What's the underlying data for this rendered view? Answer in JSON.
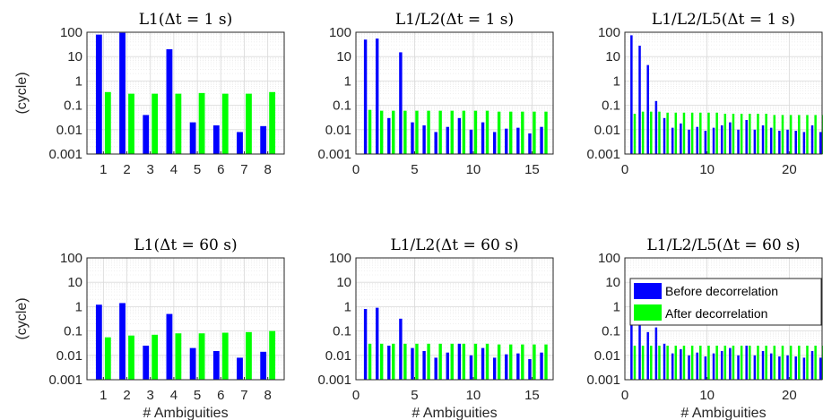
{
  "colors": {
    "before": "#0000ff",
    "after": "#00ff00",
    "grid": "#d9d9d9",
    "axis": "#262626"
  },
  "legend": {
    "placement": "top-right",
    "items": [
      "Before decorrelation",
      "After decorrelation"
    ]
  },
  "chart_data": [
    {
      "type": "bar",
      "title": "L1(Δt = 1 s)",
      "ylabel": "(cycle)",
      "xlabel": "",
      "yscale": "log",
      "ylim": [
        0.001,
        100
      ],
      "xlim": [
        0.3,
        8.7
      ],
      "xticks": [
        "1",
        "2",
        "3",
        "4",
        "5",
        "6",
        "7",
        "8"
      ],
      "yticks": [
        "0.001",
        "0.01",
        "0.1",
        "1",
        "10",
        "100"
      ],
      "grid": true,
      "x": [
        1,
        2,
        3,
        4,
        5,
        6,
        7,
        8
      ],
      "series": [
        {
          "name": "Before decorrelation",
          "values": [
            80,
            95,
            0.04,
            20,
            0.02,
            0.015,
            0.008,
            0.014
          ]
        },
        {
          "name": "After decorrelation",
          "values": [
            0.35,
            0.3,
            0.3,
            0.3,
            0.32,
            0.3,
            0.3,
            0.35
          ]
        }
      ]
    },
    {
      "type": "bar",
      "title": "L1/L2(Δt = 1 s)",
      "ylabel": "",
      "xlabel": "",
      "yscale": "log",
      "ylim": [
        0.001,
        100
      ],
      "xlim": [
        0,
        16.8
      ],
      "xticks": [
        "0",
        "5",
        "10",
        "15"
      ],
      "yticks": [
        "0.001",
        "0.01",
        "0.1",
        "1",
        "10",
        "100"
      ],
      "grid": true,
      "x": [
        1,
        2,
        3,
        4,
        5,
        6,
        7,
        8,
        9,
        10,
        11,
        12,
        13,
        14,
        15,
        16
      ],
      "series": [
        {
          "name": "Before decorrelation",
          "values": [
            50,
            55,
            0.03,
            15,
            0.02,
            0.015,
            0.008,
            0.013,
            0.03,
            0.01,
            0.02,
            0.008,
            0.011,
            0.012,
            0.007,
            0.013
          ]
        },
        {
          "name": "After decorrelation",
          "values": [
            0.065,
            0.06,
            0.06,
            0.06,
            0.06,
            0.06,
            0.06,
            0.06,
            0.06,
            0.06,
            0.06,
            0.055,
            0.055,
            0.055,
            0.055,
            0.055
          ]
        }
      ]
    },
    {
      "type": "bar",
      "title": "L1/L2/L5(Δt = 1 s)",
      "ylabel": "",
      "xlabel": "",
      "yscale": "log",
      "ylim": [
        0.001,
        100
      ],
      "xlim": [
        0,
        24
      ],
      "xticks": [
        "0",
        "10",
        "20"
      ],
      "yticks": [
        "0.001",
        "0.01",
        "0.1",
        "1",
        "10",
        "100"
      ],
      "grid": true,
      "x": [
        1,
        2,
        3,
        4,
        5,
        6,
        7,
        8,
        9,
        10,
        11,
        12,
        13,
        14,
        15,
        16,
        17,
        18,
        19,
        20,
        21,
        22,
        23,
        24
      ],
      "series": [
        {
          "name": "Before decorrelation",
          "values": [
            75,
            28,
            4.5,
            0.15,
            0.03,
            0.012,
            0.018,
            0.01,
            0.013,
            0.009,
            0.012,
            0.015,
            0.02,
            0.01,
            0.025,
            0.01,
            0.015,
            0.012,
            0.009,
            0.01,
            0.009,
            0.008,
            0.015,
            0.008
          ]
        },
        {
          "name": "After decorrelation",
          "values": [
            0.045,
            0.055,
            0.055,
            0.055,
            0.05,
            0.05,
            0.05,
            0.05,
            0.05,
            0.05,
            0.05,
            0.045,
            0.045,
            0.045,
            0.045,
            0.045,
            0.045,
            0.04,
            0.04,
            0.04,
            0.04,
            0.04,
            0.04,
            0.04
          ]
        }
      ]
    },
    {
      "type": "bar",
      "title": "L1(Δt = 60 s)",
      "ylabel": "(cycle)",
      "xlabel": "# Ambiguities",
      "yscale": "log",
      "ylim": [
        0.001,
        100
      ],
      "xlim": [
        0.3,
        8.7
      ],
      "xticks": [
        "1",
        "2",
        "3",
        "4",
        "5",
        "6",
        "7",
        "8"
      ],
      "yticks": [
        "0.001",
        "0.01",
        "0.1",
        "1",
        "10",
        "100"
      ],
      "grid": true,
      "x": [
        1,
        2,
        3,
        4,
        5,
        6,
        7,
        8
      ],
      "series": [
        {
          "name": "Before decorrelation",
          "values": [
            1.2,
            1.4,
            0.025,
            0.5,
            0.02,
            0.015,
            0.008,
            0.014
          ]
        },
        {
          "name": "After decorrelation",
          "values": [
            0.055,
            0.065,
            0.07,
            0.08,
            0.08,
            0.085,
            0.09,
            0.1
          ]
        }
      ]
    },
    {
      "type": "bar",
      "title": "L1/L2(Δt = 60 s)",
      "ylabel": "",
      "xlabel": "# Ambiguities",
      "yscale": "log",
      "ylim": [
        0.001,
        100
      ],
      "xlim": [
        0,
        16.8
      ],
      "xticks": [
        "0",
        "5",
        "10",
        "15"
      ],
      "yticks": [
        "0.001",
        "0.01",
        "0.1",
        "1",
        "10",
        "100"
      ],
      "grid": true,
      "x": [
        1,
        2,
        3,
        4,
        5,
        6,
        7,
        8,
        9,
        10,
        11,
        12,
        13,
        14,
        15,
        16
      ],
      "series": [
        {
          "name": "Before decorrelation",
          "values": [
            0.8,
            0.9,
            0.025,
            0.32,
            0.02,
            0.015,
            0.008,
            0.013,
            0.03,
            0.01,
            0.02,
            0.008,
            0.011,
            0.012,
            0.007,
            0.013
          ]
        },
        {
          "name": "After decorrelation",
          "values": [
            0.03,
            0.03,
            0.03,
            0.03,
            0.03,
            0.03,
            0.03,
            0.03,
            0.03,
            0.03,
            0.03,
            0.028,
            0.028,
            0.028,
            0.028,
            0.028
          ]
        }
      ]
    },
    {
      "type": "bar",
      "title": "L1/L2/L5(Δt = 60 s)",
      "ylabel": "",
      "xlabel": "# Ambiguities",
      "yscale": "log",
      "ylim": [
        0.001,
        100
      ],
      "xlim": [
        0,
        24
      ],
      "xticks": [
        "0",
        "10",
        "20"
      ],
      "yticks": [
        "0.001",
        "0.01",
        "0.1",
        "1",
        "10",
        "100"
      ],
      "grid": true,
      "x": [
        1,
        2,
        3,
        4,
        5,
        6,
        7,
        8,
        9,
        10,
        11,
        12,
        13,
        14,
        15,
        16,
        17,
        18,
        19,
        20,
        21,
        22,
        23,
        24
      ],
      "series": [
        {
          "name": "Before decorrelation",
          "values": [
            1.1,
            0.45,
            0.09,
            0.14,
            0.03,
            0.012,
            0.018,
            0.01,
            0.013,
            0.009,
            0.012,
            0.015,
            0.02,
            0.01,
            0.025,
            0.01,
            0.015,
            0.012,
            0.009,
            0.01,
            0.009,
            0.008,
            0.015,
            0.008
          ]
        },
        {
          "name": "After decorrelation",
          "values": [
            0.025,
            0.025,
            0.025,
            0.025,
            0.025,
            0.025,
            0.025,
            0.025,
            0.025,
            0.025,
            0.025,
            0.025,
            0.025,
            0.025,
            0.025,
            0.025,
            0.025,
            0.025,
            0.025,
            0.025,
            0.025,
            0.025,
            0.025,
            0.025
          ]
        }
      ]
    }
  ]
}
